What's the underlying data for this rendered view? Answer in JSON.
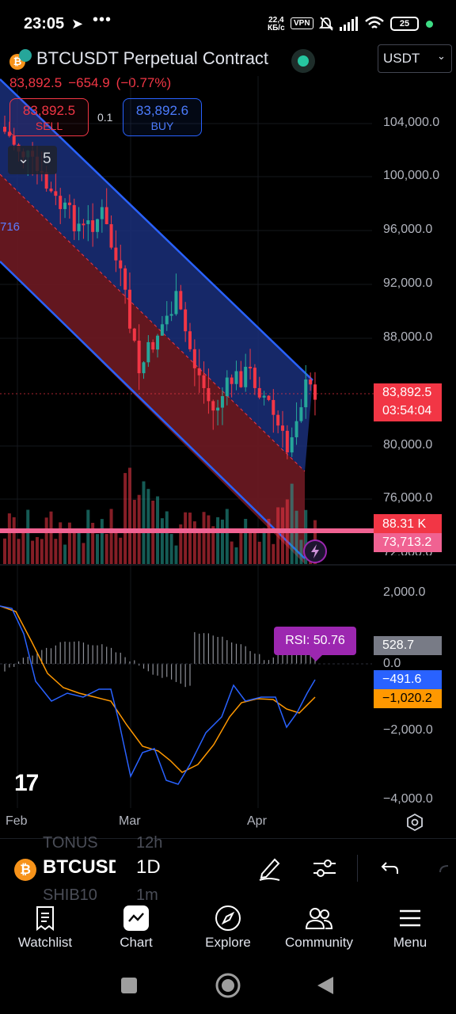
{
  "status_bar": {
    "time": "23:05",
    "dots": "•••",
    "net_speed_value": "22,4",
    "net_speed_unit": "КБ/с",
    "vpn": "VPN",
    "battery": "25"
  },
  "header": {
    "symbol_title": "BTCUSDT Perpetual Contract",
    "currency": "USDT",
    "last_price": "83,892.5",
    "change": "−654.9",
    "change_pct": "(−0.77%)",
    "sell_price": "83,892.5",
    "sell_label": "SELL",
    "buy_price": "83,892.6",
    "buy_label": "BUY",
    "quantity": "0.1",
    "indicators_count": "5",
    "channel_partial_label": "716"
  },
  "price_axis": [
    "104,000.0",
    "100,000.0",
    "96,000.0",
    "92,000.0",
    "88,000.0",
    "80,000.0",
    "76,000.0",
    "72,000.0"
  ],
  "price_tags": {
    "current_price": "83,892.5",
    "countdown": "03:54:04",
    "volume": "88.31 K",
    "level": "73,713.2"
  },
  "oscillator": {
    "axis": [
      "2,000.0",
      "0.0",
      "−2,000.0",
      "−4,000.0"
    ],
    "rsi_label": "RSI: 50.76",
    "histogram_value": "528.7",
    "macd_value": "−491.6",
    "signal_value": "−1,020.2"
  },
  "time_axis": [
    "Feb",
    "Mar",
    "Apr"
  ],
  "colors": {
    "up": "#26a69a",
    "down": "#f23645",
    "blue": "#2962ff",
    "macd_line": "#2962ff",
    "signal_line": "#ff9800",
    "rsi_badge": "#9c27b0"
  },
  "toolbar": {
    "symbol": "BTCUSDT",
    "interval": "1D",
    "ghost_top_symbol": "TONUS",
    "ghost_top_interval": "12h",
    "ghost_bottom_symbol": "SHIB10",
    "ghost_bottom_interval": "1m"
  },
  "nav": {
    "items": [
      {
        "label": "Watchlist",
        "icon": "watchlist-icon"
      },
      {
        "label": "Chart",
        "icon": "chart-icon"
      },
      {
        "label": "Explore",
        "icon": "compass-icon"
      },
      {
        "label": "Community",
        "icon": "community-icon"
      },
      {
        "label": "Menu",
        "icon": "menu-icon"
      }
    ]
  }
}
